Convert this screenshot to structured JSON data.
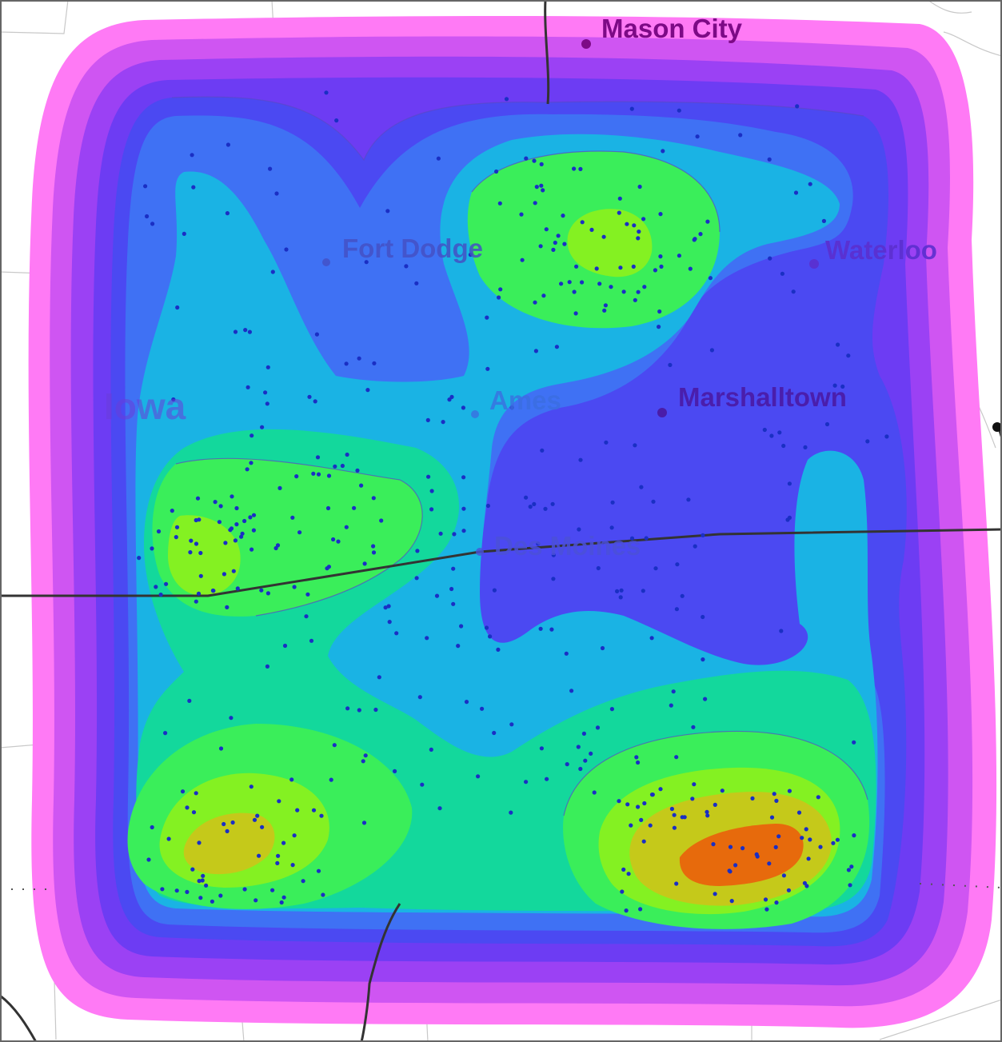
{
  "map": {
    "state_label": "Iowa",
    "colors": {
      "border": "#333333",
      "road": "#c8c8c8",
      "points": "#1a2fc4",
      "outline": "#5a48c8",
      "levels": [
        "#ff7af5",
        "#cf55f2",
        "#9b41f4",
        "#6d3cf3",
        "#4b49f2",
        "#3f71f4",
        "#1ab3e4",
        "#13d89c",
        "#3aee5a",
        "#84f122",
        "#c5c91a",
        "#e76a0c"
      ]
    },
    "cities": [
      {
        "name": "Mason City",
        "color": "#7d0a86",
        "opacity": 1.0
      },
      {
        "name": "Fort Dodge",
        "color": "#4450c4",
        "opacity": 0.85
      },
      {
        "name": "Waterloo",
        "color": "#5b2fce",
        "opacity": 0.9
      },
      {
        "name": "Ames",
        "color": "#3b6ee0",
        "opacity": 0.8
      },
      {
        "name": "Marshalltown",
        "color": "#4a1ca8",
        "opacity": 0.95
      },
      {
        "name": "Des Moines",
        "color": "#4b50d8",
        "opacity": 0.85
      }
    ]
  }
}
